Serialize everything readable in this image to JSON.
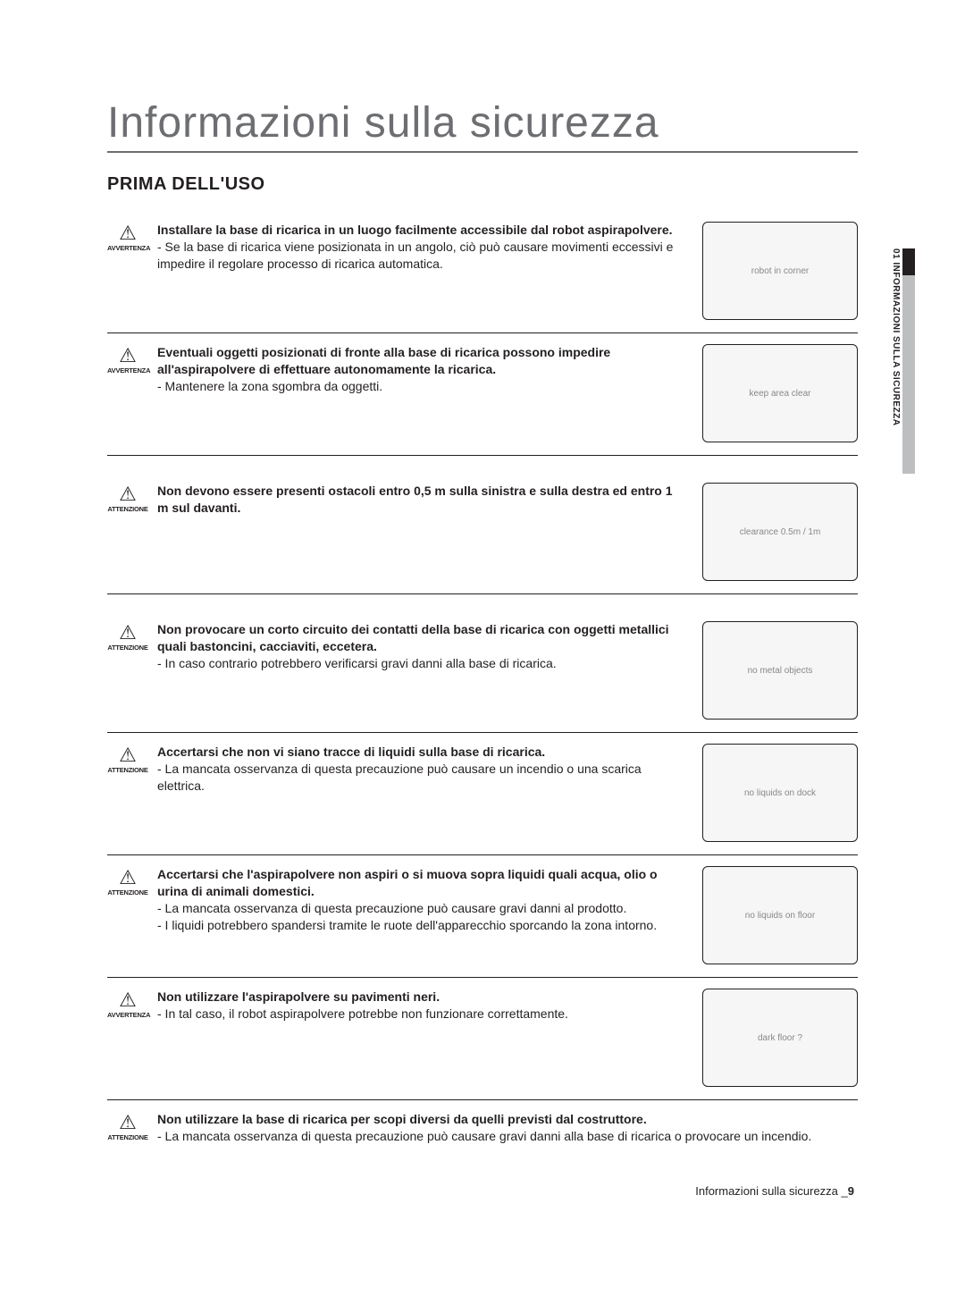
{
  "page": {
    "main_title": "Informazioni sulla sicurezza",
    "section_title": "PRIMA DELL'USO",
    "side_tab": "01 INFORMAZIONI SULLA SICUREZZA",
    "footer_text": "Informazioni sulla sicurezza _",
    "footer_page": "9"
  },
  "labels": {
    "avvertenza": "AVVERTENZA",
    "attenzione": "ATTENZIONE"
  },
  "items": [
    {
      "label_key": "avvertenza",
      "bold": "Installare la base di ricarica in un luogo facilmente accessibile dal robot aspirapolvere.",
      "details": [
        "- Se la base di ricarica viene posizionata in un angolo, ciò può causare movimenti eccessivi e impedire il regolare processo di ricarica automatica."
      ],
      "img_alt": "robot in corner"
    },
    {
      "label_key": "avvertenza",
      "bold": "Eventuali oggetti posizionati di fronte alla base di ricarica possono impedire all'aspirapolvere di effettuare autonomamente la ricarica.",
      "details": [
        "- Mantenere la zona sgombra da oggetti."
      ],
      "img_alt": "keep area clear"
    },
    {
      "label_key": "attenzione",
      "bold": "Non devono essere presenti ostacoli entro 0,5 m sulla sinistra e sulla destra ed entro 1 m sul davanti.",
      "details": [],
      "img_alt": "clearance 0.5m / 1m"
    },
    {
      "label_key": "attenzione",
      "bold": "Non provocare un corto circuito dei contatti della base di ricarica con oggetti metallici quali bastoncini, cacciaviti, eccetera.",
      "details": [
        "- In caso contrario potrebbero verificarsi gravi danni alla base di ricarica."
      ],
      "img_alt": "no metal objects"
    },
    {
      "label_key": "attenzione",
      "bold": "Accertarsi che non vi siano tracce di liquidi sulla base di ricarica.",
      "details": [
        "- La mancata osservanza di questa precauzione può causare un incendio o una scarica elettrica."
      ],
      "img_alt": "no liquids on dock"
    },
    {
      "label_key": "attenzione",
      "bold": "Accertarsi che l'aspirapolvere non aspiri o si muova sopra liquidi quali acqua, olio o urina di animali domestici.",
      "details": [
        "- La mancata osservanza di questa precauzione può causare gravi danni al prodotto.",
        "- I liquidi potrebbero spandersi tramite le ruote dell'apparecchio sporcando la zona intorno."
      ],
      "img_alt": "no liquids on floor"
    },
    {
      "label_key": "avvertenza",
      "bold": "Non utilizzare l'aspirapolvere su pavimenti neri.",
      "details": [
        "- In tal caso, il robot aspirapolvere potrebbe non funzionare correttamente."
      ],
      "img_alt": "dark floor ?"
    },
    {
      "label_key": "attenzione",
      "bold": "Non utilizzare la base di ricarica per scopi diversi da quelli previsti dal costruttore.",
      "details": [
        "- La mancata osservanza di questa precauzione può causare gravi danni alla base di ricarica o provocare un incendio."
      ],
      "img_alt": "",
      "no_image": true
    }
  ]
}
